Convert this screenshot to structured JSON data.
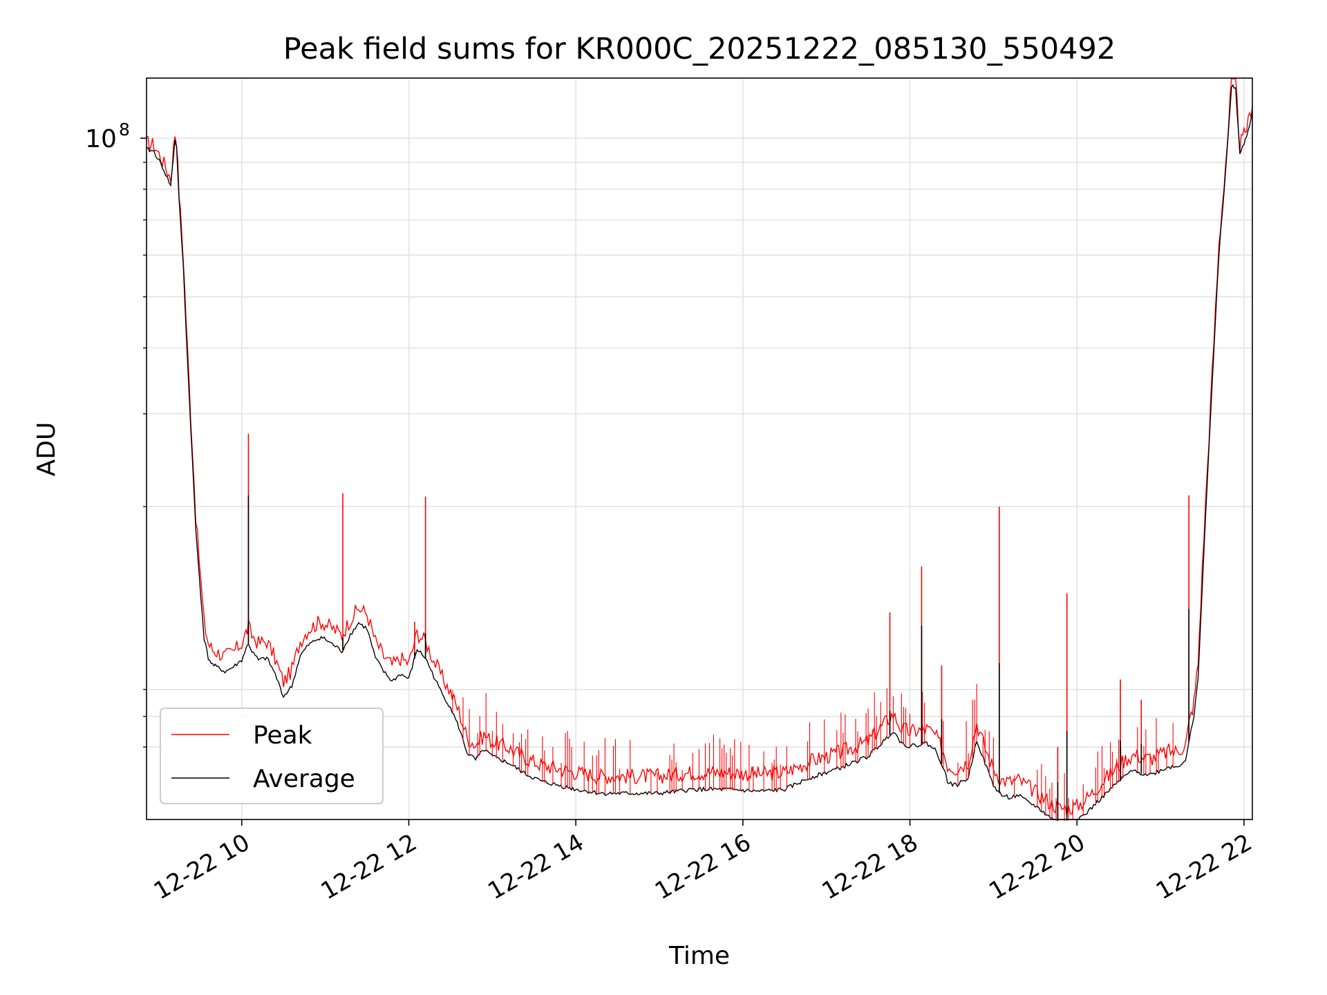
{
  "chart_data": {
    "type": "line",
    "title": "Peak field sums for KR000C_20251222_085130_550492",
    "xlabel": "Time",
    "ylabel": "ADU",
    "yscale": "log",
    "xlim": [
      8.86,
      22.1
    ],
    "ylim": [
      5100000,
      130000000
    ],
    "grid": true,
    "x_ticks": [
      {
        "value": 10,
        "label": "12-22 10"
      },
      {
        "value": 12,
        "label": "12-22 12"
      },
      {
        "value": 14,
        "label": "12-22 14"
      },
      {
        "value": 16,
        "label": "12-22 16"
      },
      {
        "value": 18,
        "label": "12-22 18"
      },
      {
        "value": 20,
        "label": "12-22 20"
      },
      {
        "value": 22,
        "label": "12-22 22"
      }
    ],
    "y_major_ticks": [
      {
        "value": 100000000,
        "base": "10",
        "exponent": "8"
      }
    ],
    "y_minor_ticks": [
      7000000,
      8000000,
      9000000,
      20000000,
      30000000,
      40000000,
      50000000,
      60000000,
      70000000,
      80000000,
      90000000
    ],
    "legend": {
      "position": "lower-left",
      "entries": [
        "Peak",
        "Average"
      ]
    },
    "series": [
      {
        "name": "Average",
        "color": "#000000",
        "x": [
          8.86,
          8.95,
          9.05,
          9.15,
          9.2,
          9.22,
          9.25,
          9.3,
          9.35,
          9.45,
          9.55,
          9.6,
          9.65,
          9.7,
          9.8,
          9.9,
          10.0,
          10.05,
          10.08,
          10.12,
          10.2,
          10.3,
          10.4,
          10.5,
          10.6,
          10.7,
          10.8,
          10.95,
          11.1,
          11.2,
          11.3,
          11.4,
          11.5,
          11.6,
          11.7,
          11.8,
          11.9,
          12.0,
          12.1,
          12.2,
          12.3,
          12.4,
          12.5,
          12.6,
          12.7,
          12.8,
          12.9,
          13.0,
          13.2,
          13.4,
          13.6,
          13.8,
          14.0,
          14.3,
          14.6,
          15.0,
          15.4,
          15.8,
          16.2,
          16.5,
          16.8,
          17.2,
          17.5,
          17.7,
          17.8,
          17.9,
          18.0,
          18.2,
          18.3,
          18.4,
          18.45,
          18.55,
          18.7,
          18.8,
          18.9,
          19.0,
          19.1,
          19.2,
          19.3,
          19.4,
          19.5,
          19.6,
          19.7,
          19.8,
          19.9,
          20.0,
          20.1,
          20.2,
          20.3,
          20.4,
          20.5,
          20.6,
          20.7,
          20.8,
          20.9,
          21.0,
          21.1,
          21.2,
          21.3,
          21.35,
          21.4,
          21.45,
          21.5,
          21.6,
          21.7,
          21.8,
          21.85,
          21.9,
          21.95,
          22.0,
          22.05,
          22.1
        ],
        "values": [
          95000000,
          94000000,
          88000000,
          81000000,
          99000000,
          96000000,
          76000000,
          57000000,
          38000000,
          18000000,
          11200000,
          10300000,
          10000000,
          9900000,
          9700000,
          9900000,
          10200000,
          10700000,
          11000000,
          10600000,
          10200000,
          10300000,
          9600000,
          8700000,
          9100000,
          10400000,
          10900000,
          11300000,
          10900000,
          10600000,
          11400000,
          12000000,
          11700000,
          10300000,
          9700000,
          9300000,
          9600000,
          9400000,
          10700000,
          10300000,
          9500000,
          8800000,
          8300000,
          7600000,
          6800000,
          6600000,
          6900000,
          6700000,
          6500000,
          6200000,
          6000000,
          5900000,
          5800000,
          5700000,
          5700000,
          5700000,
          5800000,
          5800000,
          5750000,
          5800000,
          6100000,
          6400000,
          6700000,
          7200000,
          7500000,
          7100000,
          7000000,
          7100000,
          6900000,
          6400000,
          6000000,
          5900000,
          6100000,
          7200000,
          6500000,
          5900000,
          5650000,
          5600000,
          5650000,
          5500000,
          5400000,
          5250000,
          5100000,
          5050000,
          5080000,
          5100000,
          5200000,
          5400000,
          5600000,
          5800000,
          6000000,
          6200000,
          6300000,
          6200000,
          6200000,
          6300000,
          6400000,
          6400000,
          6600000,
          7300000,
          7900000,
          9500000,
          14000000,
          30000000,
          60000000,
          95000000,
          125000000,
          124000000,
          93000000,
          97000000,
          103000000,
          112000000
        ]
      },
      {
        "name": "Peak",
        "color": "#ff0000",
        "x": [
          8.86,
          8.95,
          9.05,
          9.15,
          9.2,
          9.22,
          9.25,
          9.3,
          9.35,
          9.45,
          9.55,
          9.6,
          9.65,
          9.7,
          9.8,
          9.9,
          10.0,
          10.05,
          10.08,
          10.12,
          10.2,
          10.3,
          10.4,
          10.5,
          10.6,
          10.7,
          10.8,
          10.95,
          11.1,
          11.2,
          11.3,
          11.4,
          11.5,
          11.6,
          11.7,
          11.8,
          11.9,
          12.0,
          12.1,
          12.2,
          12.3,
          12.4,
          12.5,
          12.6,
          12.7,
          12.8,
          12.9,
          13.0,
          13.2,
          13.4,
          13.6,
          13.8,
          14.0,
          14.3,
          14.6,
          15.0,
          15.4,
          15.8,
          16.2,
          16.5,
          16.8,
          17.2,
          17.5,
          17.7,
          17.8,
          17.9,
          18.0,
          18.2,
          18.3,
          18.4,
          18.45,
          18.55,
          18.7,
          18.8,
          18.9,
          19.0,
          19.1,
          19.2,
          19.3,
          19.4,
          19.5,
          19.6,
          19.7,
          19.8,
          19.9,
          20.0,
          20.1,
          20.2,
          20.3,
          20.4,
          20.5,
          20.6,
          20.7,
          20.8,
          20.9,
          21.0,
          21.1,
          21.2,
          21.3,
          21.35,
          21.4,
          21.45,
          21.5,
          21.6,
          21.7,
          21.8,
          21.85,
          21.9,
          21.95,
          22.0,
          22.05,
          22.1
        ],
        "values": [
          97000000,
          96000000,
          90000000,
          83000000,
          101000000,
          98000000,
          78000000,
          59000000,
          39500000,
          19000000,
          11900000,
          10900000,
          10600000,
          10500000,
          10300000,
          10500000,
          10900000,
          11400000,
          11700000,
          11300000,
          10900000,
          11000000,
          10200000,
          9200000,
          9700000,
          11000000,
          11600000,
          12000000,
          11600000,
          11300000,
          12100000,
          12700000,
          12400000,
          11000000,
          10300000,
          9900000,
          10200000,
          10000000,
          11400000,
          11000000,
          10100000,
          9400000,
          8800000,
          8100000,
          7200000,
          7000000,
          7300000,
          7100000,
          6900000,
          6600000,
          6400000,
          6300000,
          6200000,
          6100000,
          6100000,
          6100000,
          6200000,
          6200000,
          6150000,
          6200000,
          6500000,
          6800000,
          7100000,
          7700000,
          8000000,
          7500000,
          7400000,
          7500000,
          7300000,
          6800000,
          6400000,
          6300000,
          6500000,
          7700000,
          6900000,
          6300000,
          6000000,
          5950000,
          6000000,
          5850000,
          5700000,
          5550000,
          5400000,
          5300000,
          5300000,
          5350000,
          5500000,
          5700000,
          5950000,
          6150000,
          6400000,
          6600000,
          6700000,
          6600000,
          6600000,
          6700000,
          6800000,
          6800000,
          7000000,
          7800000,
          8400000,
          10000000,
          15000000,
          31000000,
          62000000,
          97000000,
          127000000,
          126000000,
          96000000,
          100000000,
          106000000,
          115000000
        ]
      }
    ],
    "spikes": [
      {
        "x": 10.08,
        "values": [
          27500000,
          21000000
        ]
      },
      {
        "x": 11.21,
        "values": [
          21200000,
          11300000
        ]
      },
      {
        "x": 12.07,
        "values": [
          12100000,
          10600000
        ]
      },
      {
        "x": 12.2,
        "values": [
          20900000,
          11500000
        ]
      },
      {
        "x": 17.76,
        "values": [
          12600000,
          8200000
        ]
      },
      {
        "x": 18.14,
        "values": [
          15400000,
          11900000
        ]
      },
      {
        "x": 18.38,
        "values": [
          10000000,
          7900000
        ]
      },
      {
        "x": 19.07,
        "values": [
          20000000,
          10100000
        ]
      },
      {
        "x": 19.77,
        "values": [
          7000000,
          6000000
        ]
      },
      {
        "x": 19.88,
        "values": [
          13700000,
          7500000
        ]
      },
      {
        "x": 20.52,
        "values": [
          9400000,
          7200000
        ]
      },
      {
        "x": 20.77,
        "values": [
          8600000,
          7100000
        ]
      },
      {
        "x": 21.34,
        "values": [
          21000000,
          12800000
        ]
      }
    ]
  }
}
